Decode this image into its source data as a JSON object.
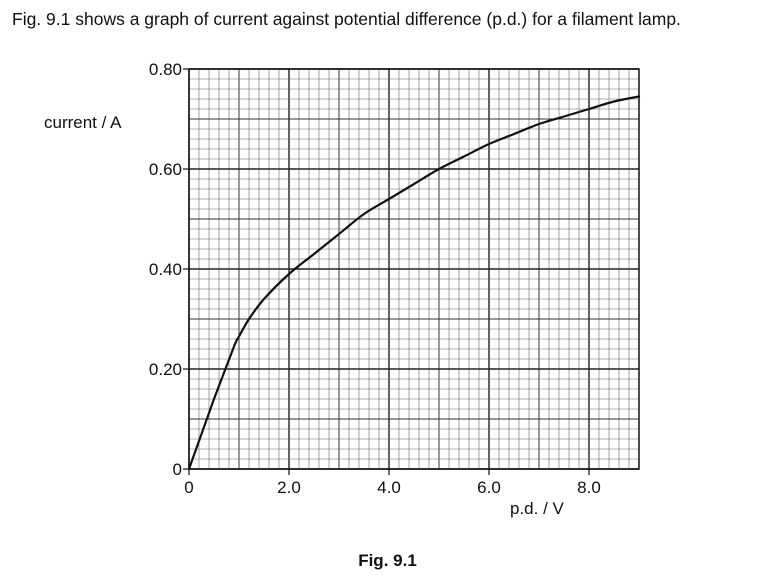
{
  "intro_text": "Fig. 9.1 shows a graph of current against potential difference (p.d.) for a filament lamp.",
  "figure_caption": "Fig. 9.1",
  "chart_data": {
    "type": "line",
    "title": "",
    "xlabel": "p.d. / V",
    "ylabel": "current / A",
    "xlim": [
      0,
      9.0
    ],
    "ylim": [
      0,
      0.8
    ],
    "grid": true,
    "x_ticks": [
      {
        "value": 0,
        "label": "0"
      },
      {
        "value": 2.0,
        "label": "2.0"
      },
      {
        "value": 4.0,
        "label": "4.0"
      },
      {
        "value": 6.0,
        "label": "6.0"
      },
      {
        "value": 8.0,
        "label": "8.0"
      }
    ],
    "y_ticks": [
      {
        "value": 0,
        "label": "0"
      },
      {
        "value": 0.2,
        "label": "0.20"
      },
      {
        "value": 0.4,
        "label": "0.40"
      },
      {
        "value": 0.6,
        "label": "0.60"
      },
      {
        "value": 0.8,
        "label": "0.80"
      }
    ],
    "series": [
      {
        "name": "filament lamp",
        "x": [
          0,
          0.5,
          0.9,
          1.0,
          1.2,
          1.5,
          2.0,
          2.5,
          3.0,
          3.5,
          4.0,
          4.5,
          5.0,
          5.5,
          6.0,
          6.5,
          7.0,
          7.5,
          8.0,
          8.5,
          9.0
        ],
        "y": [
          0,
          0.14,
          0.245,
          0.265,
          0.3,
          0.34,
          0.39,
          0.43,
          0.47,
          0.51,
          0.54,
          0.57,
          0.6,
          0.625,
          0.65,
          0.67,
          0.69,
          0.705,
          0.72,
          0.735,
          0.745
        ]
      }
    ]
  }
}
